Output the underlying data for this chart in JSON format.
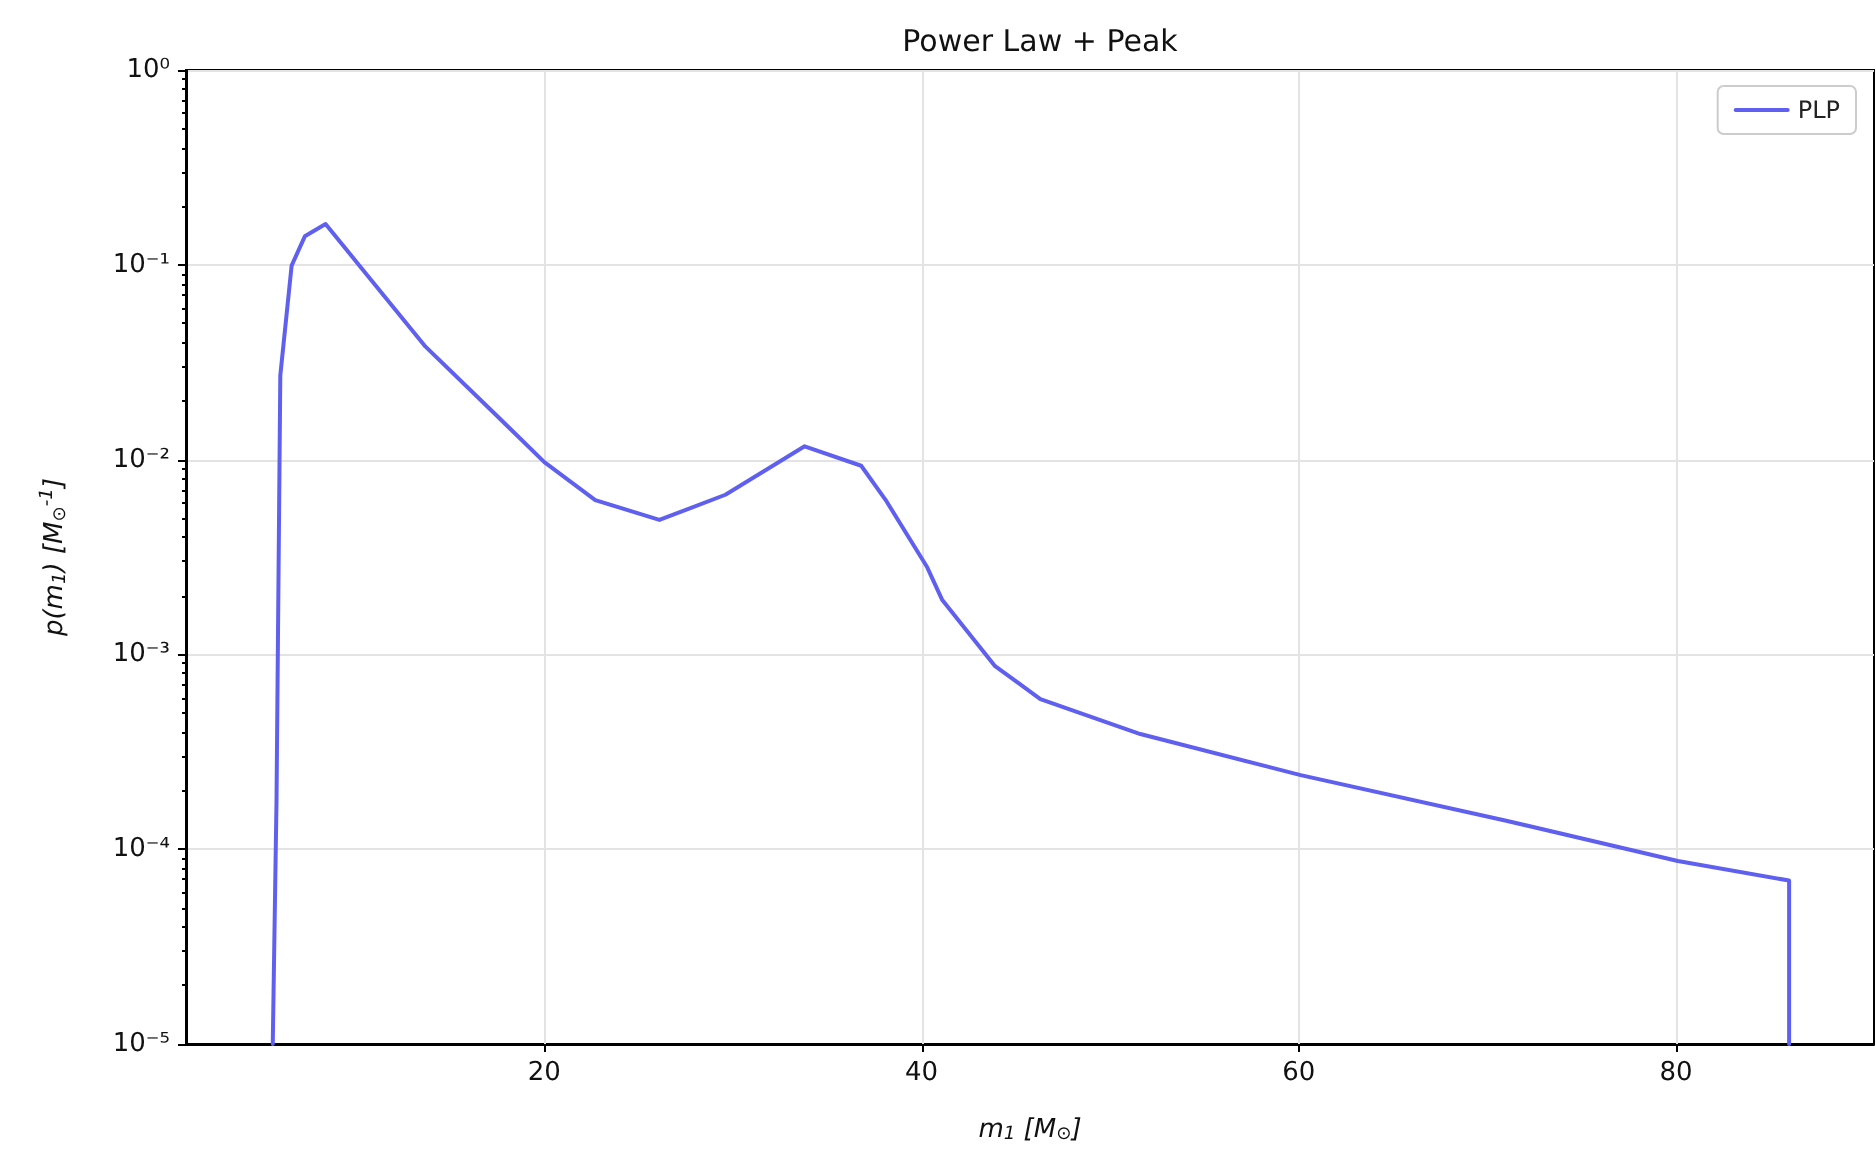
{
  "chart_data": {
    "type": "line",
    "title": "Power Law + Peak",
    "xlabel": "m$_{1}$ [M$_{⊙}$]",
    "ylabel": "p(m$_{1}$) [M$_{⊙}$$^{-1}$]",
    "xlim": [
      1,
      90.5
    ],
    "xticks": [
      20,
      40,
      60,
      80
    ],
    "ylim": [
      1e-05,
      1
    ],
    "yticks": [
      {
        "value": 1e-05,
        "label": "10⁻⁵"
      },
      {
        "value": 0.0001,
        "label": "10⁻⁴"
      },
      {
        "value": 0.001,
        "label": "10⁻³"
      },
      {
        "value": 0.01,
        "label": "10⁻²"
      },
      {
        "value": 0.1,
        "label": "10⁻¹"
      },
      {
        "value": 1,
        "label": "10⁰"
      }
    ],
    "log": "y",
    "grid": true,
    "legend": "top right",
    "series": [
      {
        "name": "PLP",
        "color": "#6060f0",
        "x": [
          5.6,
          5.8,
          6.0,
          6.6,
          7.3,
          8.4,
          10.2,
          13.7,
          17.4,
          20,
          22.7,
          26.1,
          29.6,
          33.8,
          36.8,
          38.1,
          40.3,
          41.1,
          43.9,
          46.3,
          51.6,
          60.1,
          71.0,
          80.1,
          86,
          86
        ],
        "values": [
          1e-05,
          0.00018,
          0.027,
          0.099,
          0.14,
          0.162,
          0.099,
          0.038,
          0.0171,
          0.0097,
          0.0062,
          0.0049,
          0.0066,
          0.0117,
          0.0093,
          0.0062,
          0.0028,
          0.0019,
          0.00087,
          0.00059,
          0.00039,
          0.00024,
          0.00014,
          8.7e-05,
          6.9e-05,
          1e-05
        ]
      }
    ]
  }
}
